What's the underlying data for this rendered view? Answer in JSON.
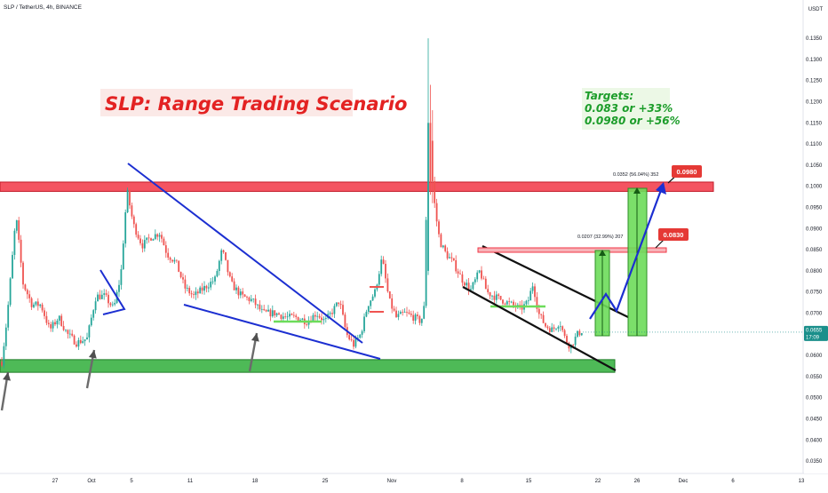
{
  "header": {
    "symbol_line": "SLP / TetherUS, 4h, BINANCE"
  },
  "chart_data": {
    "type": "candlestick",
    "title": "SLP: Range Trading Scenario",
    "currency_label": "USDT",
    "ylim": [
      0.0325,
      0.138
    ],
    "y_ticks": [
      "0.1350",
      "0.1300",
      "0.1250",
      "0.1200",
      "0.1150",
      "0.1100",
      "0.1050",
      "0.1000",
      "0.0950",
      "0.0900",
      "0.0850",
      "0.0800",
      "0.0750",
      "0.0700",
      "0.0650",
      "0.0600",
      "0.0550",
      "0.0500",
      "0.0450",
      "0.0400",
      "0.0350"
    ],
    "x_ticks": [
      "27",
      "Oct",
      "5",
      "11",
      "18",
      "25",
      "Nov",
      "8",
      "15",
      "22",
      "26",
      "Dec",
      "6",
      "13"
    ],
    "last_price": "0.0655",
    "countdown": "17:09",
    "zones": [
      {
        "name": "resistance",
        "low": 0.0988,
        "high": 0.101,
        "color": "#f23645"
      },
      {
        "name": "support",
        "low": 0.056,
        "high": 0.059,
        "color": "#2fae3a"
      }
    ],
    "targets_box": {
      "lines": [
        "Targets:",
        "0.083 or +33%",
        "0.0980 or +56%"
      ]
    },
    "target_labels": [
      {
        "price": "0.0980",
        "measure": "0.0352 (56.04%) 352"
      },
      {
        "price": "0.0830",
        "measure": "0.0207 (32.99%) 207"
      }
    ],
    "colors": {
      "up": "#26a69a",
      "down": "#ef5350",
      "trend_blue": "#1c2fd1",
      "channel_black": "#111111",
      "target_green": "#6ddc5a",
      "resistance": "#f23645",
      "support": "#2fae3a",
      "title_red": "#e32222",
      "targets_text": "#1c9d2a",
      "price_badge": "#1a8f8b"
    },
    "candles": []
  }
}
